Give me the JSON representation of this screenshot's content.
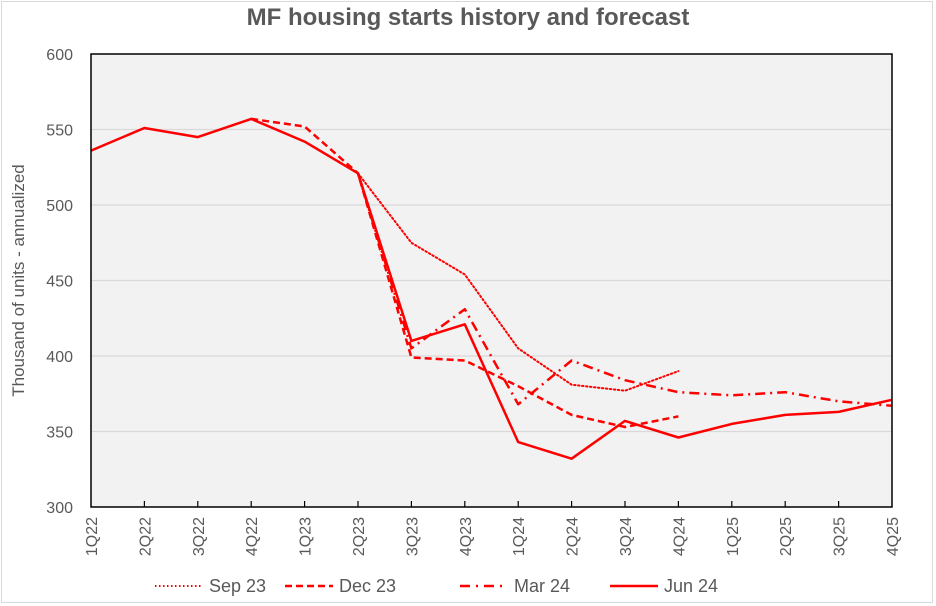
{
  "chart_data": {
    "type": "line",
    "title": "MF housing starts history and forecast",
    "xlabel": "",
    "ylabel": "Thousand  of units - annualized",
    "ylim": [
      300,
      600
    ],
    "yticks": [
      300,
      350,
      400,
      450,
      500,
      550,
      600
    ],
    "grid": true,
    "legend_position": "bottom",
    "categories": [
      "1Q22",
      "2Q22",
      "3Q22",
      "4Q22",
      "1Q23",
      "2Q23",
      "3Q23",
      "4Q23",
      "1Q24",
      "2Q24",
      "3Q24",
      "4Q24",
      "1Q25",
      "2Q25",
      "3Q25",
      "4Q25"
    ],
    "series": [
      {
        "name": "Sep 23",
        "style": "dotted",
        "color": "#ff0000",
        "values": [
          null,
          null,
          null,
          null,
          null,
          521,
          475,
          454,
          405,
          381,
          377,
          390,
          null,
          null,
          null,
          null
        ]
      },
      {
        "name": "Dec 23",
        "style": "dashed",
        "color": "#ff0000",
        "values": [
          null,
          null,
          null,
          557,
          552,
          521,
          399,
          397,
          380,
          361,
          353,
          360,
          null,
          null,
          null,
          null
        ]
      },
      {
        "name": "Mar 24",
        "style": "dashdot",
        "color": "#ff0000",
        "values": [
          null,
          null,
          null,
          null,
          null,
          521,
          405,
          431,
          368,
          397,
          384,
          376,
          374,
          376,
          370,
          367
        ]
      },
      {
        "name": "Jun 24",
        "style": "solid",
        "color": "#ff0000",
        "values": [
          536,
          551,
          545,
          557,
          542,
          521,
          410,
          421,
          343,
          332,
          357,
          346,
          355,
          361,
          363,
          371
        ]
      }
    ]
  }
}
